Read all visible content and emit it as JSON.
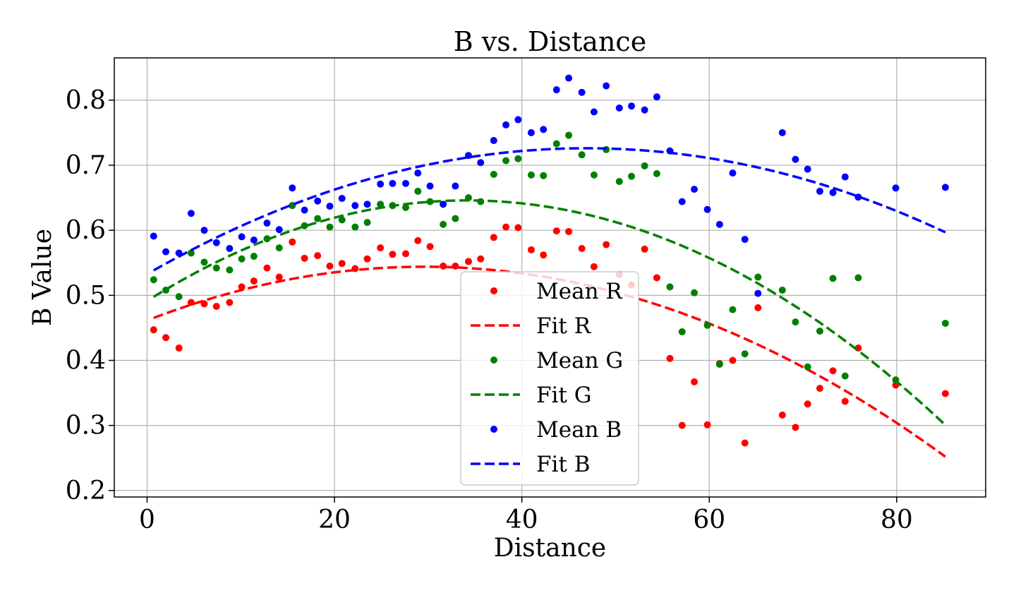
{
  "chart_data": {
    "type": "scatter",
    "title": "B vs. Distance",
    "xlabel": "Distance",
    "ylabel": "B Value",
    "xlim": [
      -3.5,
      89.5
    ],
    "ylim": [
      0.19,
      0.865
    ],
    "xticks": [
      0,
      20,
      40,
      60,
      80
    ],
    "yticks": [
      0.2,
      0.3,
      0.4,
      0.5,
      0.6,
      0.7,
      0.8
    ],
    "xtick_labels": [
      "0",
      "20",
      "40",
      "60",
      "80"
    ],
    "ytick_labels": [
      "0.2",
      "0.3",
      "0.4",
      "0.5",
      "0.6",
      "0.7",
      "0.8"
    ],
    "grid": true,
    "legend_position": "lower-center",
    "x": [
      0.7,
      2.0,
      3.4,
      4.7,
      6.1,
      7.4,
      8.8,
      10.1,
      11.4,
      12.8,
      14.1,
      15.5,
      16.8,
      18.2,
      19.5,
      20.8,
      22.2,
      23.5,
      24.9,
      26.2,
      27.6,
      28.9,
      30.2,
      31.6,
      32.9,
      34.3,
      35.6,
      37.0,
      38.3,
      39.6,
      41.0,
      42.3,
      43.7,
      45.0,
      46.4,
      47.7,
      49.0,
      50.4,
      51.7,
      53.1,
      54.4,
      55.8,
      57.1,
      58.4,
      59.8,
      61.1,
      62.5,
      63.8,
      65.2,
      67.8,
      69.2,
      70.5,
      71.8,
      73.2,
      74.5,
      75.9,
      79.9,
      85.2
    ],
    "series": [
      {
        "name": "Mean R",
        "kind": "points",
        "color": "#ff0000",
        "values": [
          0.447,
          0.435,
          0.419,
          0.489,
          0.487,
          0.483,
          0.489,
          0.513,
          0.522,
          0.542,
          0.528,
          0.582,
          0.557,
          0.561,
          0.545,
          0.549,
          0.541,
          0.556,
          0.573,
          0.563,
          0.564,
          0.584,
          0.575,
          0.545,
          0.545,
          0.552,
          0.556,
          0.589,
          0.605,
          0.604,
          0.57,
          0.562,
          0.599,
          0.598,
          0.572,
          0.544,
          0.578,
          0.532,
          0.516,
          0.571,
          0.527,
          0.403,
          0.3,
          0.367,
          0.301,
          0.395,
          0.4,
          0.273,
          0.481,
          0.316,
          0.297,
          0.333,
          0.357,
          0.384,
          0.337,
          0.419,
          0.362,
          0.349
        ]
      },
      {
        "name": "Fit R",
        "kind": "line",
        "color": "#ff0000",
        "fit": {
          "a": -9.44e-05,
          "b": 0.005584,
          "c": 0.4614
        },
        "range": [
          0.7,
          85.2
        ]
      },
      {
        "name": "Mean G",
        "kind": "points",
        "color": "#008000",
        "values": [
          0.524,
          0.508,
          0.498,
          0.565,
          0.551,
          0.542,
          0.539,
          0.556,
          0.56,
          0.587,
          0.573,
          0.638,
          0.607,
          0.618,
          0.605,
          0.616,
          0.605,
          0.612,
          0.64,
          0.638,
          0.635,
          0.66,
          0.644,
          0.609,
          0.618,
          0.65,
          0.644,
          0.686,
          0.707,
          0.71,
          0.685,
          0.684,
          0.733,
          0.746,
          0.716,
          0.685,
          0.724,
          0.675,
          0.683,
          0.699,
          0.687,
          0.513,
          0.444,
          0.504,
          0.454,
          0.394,
          0.478,
          0.41,
          0.528,
          0.508,
          0.459,
          0.39,
          0.445,
          0.526,
          0.376,
          0.527,
          0.37,
          0.457
        ]
      },
      {
        "name": "Fit G",
        "kind": "line",
        "color": "#008000",
        "fit": {
          "a": -0.0001325,
          "b": 0.009049,
          "c": 0.4914
        },
        "range": [
          0.7,
          85.2
        ]
      },
      {
        "name": "Mean B",
        "kind": "points",
        "color": "#0000ff",
        "values": [
          0.591,
          0.567,
          0.565,
          0.626,
          0.6,
          0.581,
          0.572,
          0.59,
          0.585,
          0.611,
          0.601,
          0.665,
          0.631,
          0.645,
          0.637,
          0.649,
          0.638,
          0.64,
          0.671,
          0.672,
          0.672,
          0.688,
          0.668,
          0.64,
          0.668,
          0.715,
          0.704,
          0.738,
          0.762,
          0.77,
          0.75,
          0.755,
          0.816,
          0.834,
          0.812,
          0.782,
          0.822,
          0.788,
          0.791,
          0.785,
          0.805,
          0.722,
          0.644,
          0.663,
          0.632,
          0.609,
          0.688,
          0.586,
          0.503,
          0.75,
          0.709,
          0.694,
          0.66,
          0.658,
          0.682,
          0.651,
          0.665,
          0.666
        ]
      },
      {
        "name": "Fit B",
        "kind": "line",
        "color": "#0000ff",
        "fit": {
          "a": -8.8e-05,
          "b": 0.008252,
          "c": 0.5326
        },
        "range": [
          0.7,
          85.2
        ]
      }
    ]
  }
}
